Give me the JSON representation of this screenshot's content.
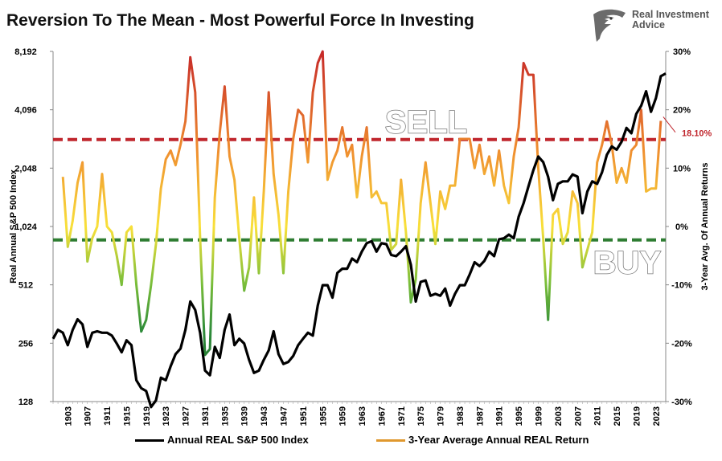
{
  "chart_title": "Reversion To The Mean - Most Powerful Force In Investing",
  "brand": {
    "name": "Real Investment Advice",
    "logo_icon": "eagle-head-icon"
  },
  "colors": {
    "index_line": "#000000",
    "sell_line": "#c0262d",
    "buy_line": "#2e7d32",
    "return_high": "#c62828",
    "return_mid": "#f9e03a",
    "return_low": "#2e8b3a",
    "callout": "#c0262d"
  },
  "chart_data": {
    "type": "line",
    "xlabel": "",
    "ylabel_left": "Real Annual S&P 500 Index",
    "ylabel_right": "3-Year Avg. Of Annual Returns",
    "yscale_left": "log2",
    "ylim_left": [
      128,
      8192
    ],
    "yticks_left": [
      "128",
      "256",
      "512",
      "1,024",
      "2,048",
      "4,096",
      "8,192"
    ],
    "ylim_right": [
      -30,
      30
    ],
    "yticks_right": [
      "-30%",
      "-20%",
      "-10%",
      "0%",
      "10%",
      "20%",
      "30%"
    ],
    "xlim": [
      1900,
      2025
    ],
    "xticks": [
      "1903",
      "1907",
      "1911",
      "1915",
      "1919",
      "1923",
      "1927",
      "1931",
      "1935",
      "1939",
      "1943",
      "1947",
      "1951",
      "1955",
      "1959",
      "1963",
      "1967",
      "1971",
      "1975",
      "1979",
      "1983",
      "1987",
      "1991",
      "1995",
      "1999",
      "2003",
      "2007",
      "2011",
      "2015",
      "2019",
      "2023"
    ],
    "series": [
      {
        "name": "Annual REAL S&P 500 Index",
        "axis": "left",
        "color": "#000000",
        "points": [
          [
            1900,
            270
          ],
          [
            1901,
            300
          ],
          [
            1902,
            290
          ],
          [
            1903,
            250
          ],
          [
            1904,
            300
          ],
          [
            1905,
            340
          ],
          [
            1906,
            320
          ],
          [
            1907,
            245
          ],
          [
            1908,
            290
          ],
          [
            1909,
            295
          ],
          [
            1910,
            290
          ],
          [
            1911,
            290
          ],
          [
            1912,
            280
          ],
          [
            1913,
            255
          ],
          [
            1914,
            230
          ],
          [
            1915,
            265
          ],
          [
            1916,
            250
          ],
          [
            1917,
            165
          ],
          [
            1918,
            150
          ],
          [
            1919,
            145
          ],
          [
            1920,
            120
          ],
          [
            1921,
            130
          ],
          [
            1922,
            170
          ],
          [
            1923,
            165
          ],
          [
            1924,
            195
          ],
          [
            1925,
            225
          ],
          [
            1926,
            240
          ],
          [
            1927,
            300
          ],
          [
            1928,
            420
          ],
          [
            1929,
            380
          ],
          [
            1930,
            290
          ],
          [
            1931,
            185
          ],
          [
            1932,
            175
          ],
          [
            1933,
            245
          ],
          [
            1934,
            215
          ],
          [
            1935,
            300
          ],
          [
            1936,
            360
          ],
          [
            1937,
            250
          ],
          [
            1938,
            270
          ],
          [
            1939,
            255
          ],
          [
            1940,
            210
          ],
          [
            1941,
            180
          ],
          [
            1942,
            185
          ],
          [
            1943,
            210
          ],
          [
            1944,
            235
          ],
          [
            1945,
            295
          ],
          [
            1946,
            225
          ],
          [
            1947,
            200
          ],
          [
            1948,
            205
          ],
          [
            1949,
            220
          ],
          [
            1950,
            250
          ],
          [
            1951,
            270
          ],
          [
            1952,
            290
          ],
          [
            1953,
            280
          ],
          [
            1954,
            400
          ],
          [
            1955,
            510
          ],
          [
            1956,
            510
          ],
          [
            1957,
            440
          ],
          [
            1958,
            590
          ],
          [
            1959,
            620
          ],
          [
            1960,
            620
          ],
          [
            1961,
            700
          ],
          [
            1962,
            670
          ],
          [
            1963,
            760
          ],
          [
            1964,
            840
          ],
          [
            1965,
            860
          ],
          [
            1966,
            760
          ],
          [
            1967,
            840
          ],
          [
            1968,
            830
          ],
          [
            1969,
            730
          ],
          [
            1970,
            720
          ],
          [
            1971,
            760
          ],
          [
            1972,
            810
          ],
          [
            1973,
            650
          ],
          [
            1974,
            420
          ],
          [
            1975,
            530
          ],
          [
            1976,
            540
          ],
          [
            1977,
            450
          ],
          [
            1978,
            460
          ],
          [
            1979,
            450
          ],
          [
            1980,
            490
          ],
          [
            1981,
            400
          ],
          [
            1982,
            460
          ],
          [
            1983,
            510
          ],
          [
            1984,
            510
          ],
          [
            1985,
            580
          ],
          [
            1986,
            670
          ],
          [
            1987,
            640
          ],
          [
            1988,
            680
          ],
          [
            1989,
            760
          ],
          [
            1990,
            720
          ],
          [
            1991,
            880
          ],
          [
            1992,
            890
          ],
          [
            1993,
            930
          ],
          [
            1994,
            890
          ],
          [
            1995,
            1150
          ],
          [
            1996,
            1350
          ],
          [
            1997,
            1650
          ],
          [
            1998,
            2000
          ],
          [
            1999,
            2350
          ],
          [
            2000,
            2200
          ],
          [
            2001,
            1850
          ],
          [
            2002,
            1400
          ],
          [
            2003,
            1700
          ],
          [
            2004,
            1750
          ],
          [
            2005,
            1750
          ],
          [
            2006,
            1900
          ],
          [
            2007,
            1850
          ],
          [
            2008,
            1200
          ],
          [
            2009,
            1550
          ],
          [
            2010,
            1750
          ],
          [
            2011,
            1700
          ],
          [
            2012,
            1950
          ],
          [
            2013,
            2400
          ],
          [
            2014,
            2650
          ],
          [
            2015,
            2550
          ],
          [
            2016,
            2800
          ],
          [
            2017,
            3300
          ],
          [
            2018,
            3100
          ],
          [
            2019,
            3900
          ],
          [
            2020,
            4300
          ],
          [
            2021,
            5100
          ],
          [
            2022,
            4000
          ],
          [
            2023,
            4700
          ],
          [
            2024,
            6100
          ],
          [
            2025,
            6300
          ]
        ]
      },
      {
        "name": "3-Year Average Annual REAL Return",
        "axis": "right",
        "color": "#e0982e",
        "points": [
          [
            1902,
            8.5
          ],
          [
            1903,
            -3.5
          ],
          [
            1904,
            1
          ],
          [
            1905,
            7.5
          ],
          [
            1906,
            11
          ],
          [
            1907,
            -6
          ],
          [
            1908,
            -2
          ],
          [
            1909,
            0
          ],
          [
            1910,
            9
          ],
          [
            1911,
            0
          ],
          [
            1912,
            -1
          ],
          [
            1913,
            -5
          ],
          [
            1914,
            -10
          ],
          [
            1915,
            -1
          ],
          [
            1916,
            0
          ],
          [
            1917,
            -10
          ],
          [
            1918,
            -18
          ],
          [
            1919,
            -16
          ],
          [
            1920,
            -10
          ],
          [
            1921,
            -3
          ],
          [
            1922,
            6.5
          ],
          [
            1923,
            11.5
          ],
          [
            1924,
            13
          ],
          [
            1925,
            10.5
          ],
          [
            1926,
            14
          ],
          [
            1927,
            18
          ],
          [
            1928,
            29
          ],
          [
            1929,
            23
          ],
          [
            1930,
            -2
          ],
          [
            1931,
            -22
          ],
          [
            1932,
            -21
          ],
          [
            1933,
            5
          ],
          [
            1934,
            16
          ],
          [
            1935,
            24
          ],
          [
            1936,
            12
          ],
          [
            1937,
            8
          ],
          [
            1938,
            -2
          ],
          [
            1939,
            -11
          ],
          [
            1940,
            -7
          ],
          [
            1941,
            5
          ],
          [
            1942,
            -8
          ],
          [
            1943,
            6
          ],
          [
            1944,
            23
          ],
          [
            1945,
            9
          ],
          [
            1946,
            2
          ],
          [
            1947,
            -8
          ],
          [
            1948,
            6
          ],
          [
            1949,
            15
          ],
          [
            1950,
            20
          ],
          [
            1951,
            19
          ],
          [
            1952,
            11
          ],
          [
            1953,
            23
          ],
          [
            1954,
            28
          ],
          [
            1955,
            30
          ],
          [
            1956,
            8
          ],
          [
            1957,
            11
          ],
          [
            1958,
            13
          ],
          [
            1959,
            17
          ],
          [
            1960,
            12
          ],
          [
            1961,
            14
          ],
          [
            1962,
            5
          ],
          [
            1963,
            12
          ],
          [
            1964,
            17
          ],
          [
            1965,
            5
          ],
          [
            1966,
            6
          ],
          [
            1967,
            4
          ],
          [
            1968,
            4
          ],
          [
            1969,
            -4
          ],
          [
            1970,
            -3
          ],
          [
            1971,
            8
          ],
          [
            1972,
            -1
          ],
          [
            1973,
            -13
          ],
          [
            1974,
            -9
          ],
          [
            1975,
            4
          ],
          [
            1976,
            11
          ],
          [
            1977,
            4
          ],
          [
            1978,
            -3
          ],
          [
            1979,
            6
          ],
          [
            1980,
            3
          ],
          [
            1981,
            7
          ],
          [
            1982,
            7
          ],
          [
            1983,
            15
          ],
          [
            1984,
            15
          ],
          [
            1985,
            15
          ],
          [
            1986,
            10
          ],
          [
            1987,
            14
          ],
          [
            1988,
            9
          ],
          [
            1989,
            12
          ],
          [
            1990,
            7
          ],
          [
            1991,
            13
          ],
          [
            1992,
            7
          ],
          [
            1993,
            4
          ],
          [
            1994,
            12
          ],
          [
            1995,
            17
          ],
          [
            1996,
            28
          ],
          [
            1997,
            26
          ],
          [
            1998,
            26
          ],
          [
            1999,
            10
          ],
          [
            2000,
            -2
          ],
          [
            2001,
            -16
          ],
          [
            2002,
            2
          ],
          [
            2003,
            3
          ],
          [
            2004,
            -3
          ],
          [
            2005,
            -1
          ],
          [
            2006,
            6
          ],
          [
            2007,
            4
          ],
          [
            2008,
            -7
          ],
          [
            2009,
            -4
          ],
          [
            2010,
            -1
          ],
          [
            2011,
            11
          ],
          [
            2012,
            14
          ],
          [
            2013,
            18
          ],
          [
            2014,
            14
          ],
          [
            2015,
            7.5
          ],
          [
            2016,
            10
          ],
          [
            2017,
            7.5
          ],
          [
            2018,
            13
          ],
          [
            2019,
            14
          ],
          [
            2020,
            20
          ],
          [
            2021,
            6
          ],
          [
            2022,
            6.5
          ],
          [
            2023,
            6.5
          ],
          [
            2024,
            18.1
          ]
        ]
      }
    ],
    "reference_lines": [
      {
        "name": "sell",
        "axis": "right",
        "value": 14.9,
        "label": "SELL",
        "color": "#c0262d"
      },
      {
        "name": "buy",
        "axis": "right",
        "value": -2.3,
        "label": "BUY",
        "color": "#2e7d32"
      }
    ],
    "callout": {
      "value": 18.1,
      "label": "18.10%"
    },
    "legend": {
      "position": "bottom",
      "entries": [
        "Annual REAL S&P 500 Index",
        "3-Year Average Annual REAL Return"
      ]
    },
    "grid": false
  }
}
